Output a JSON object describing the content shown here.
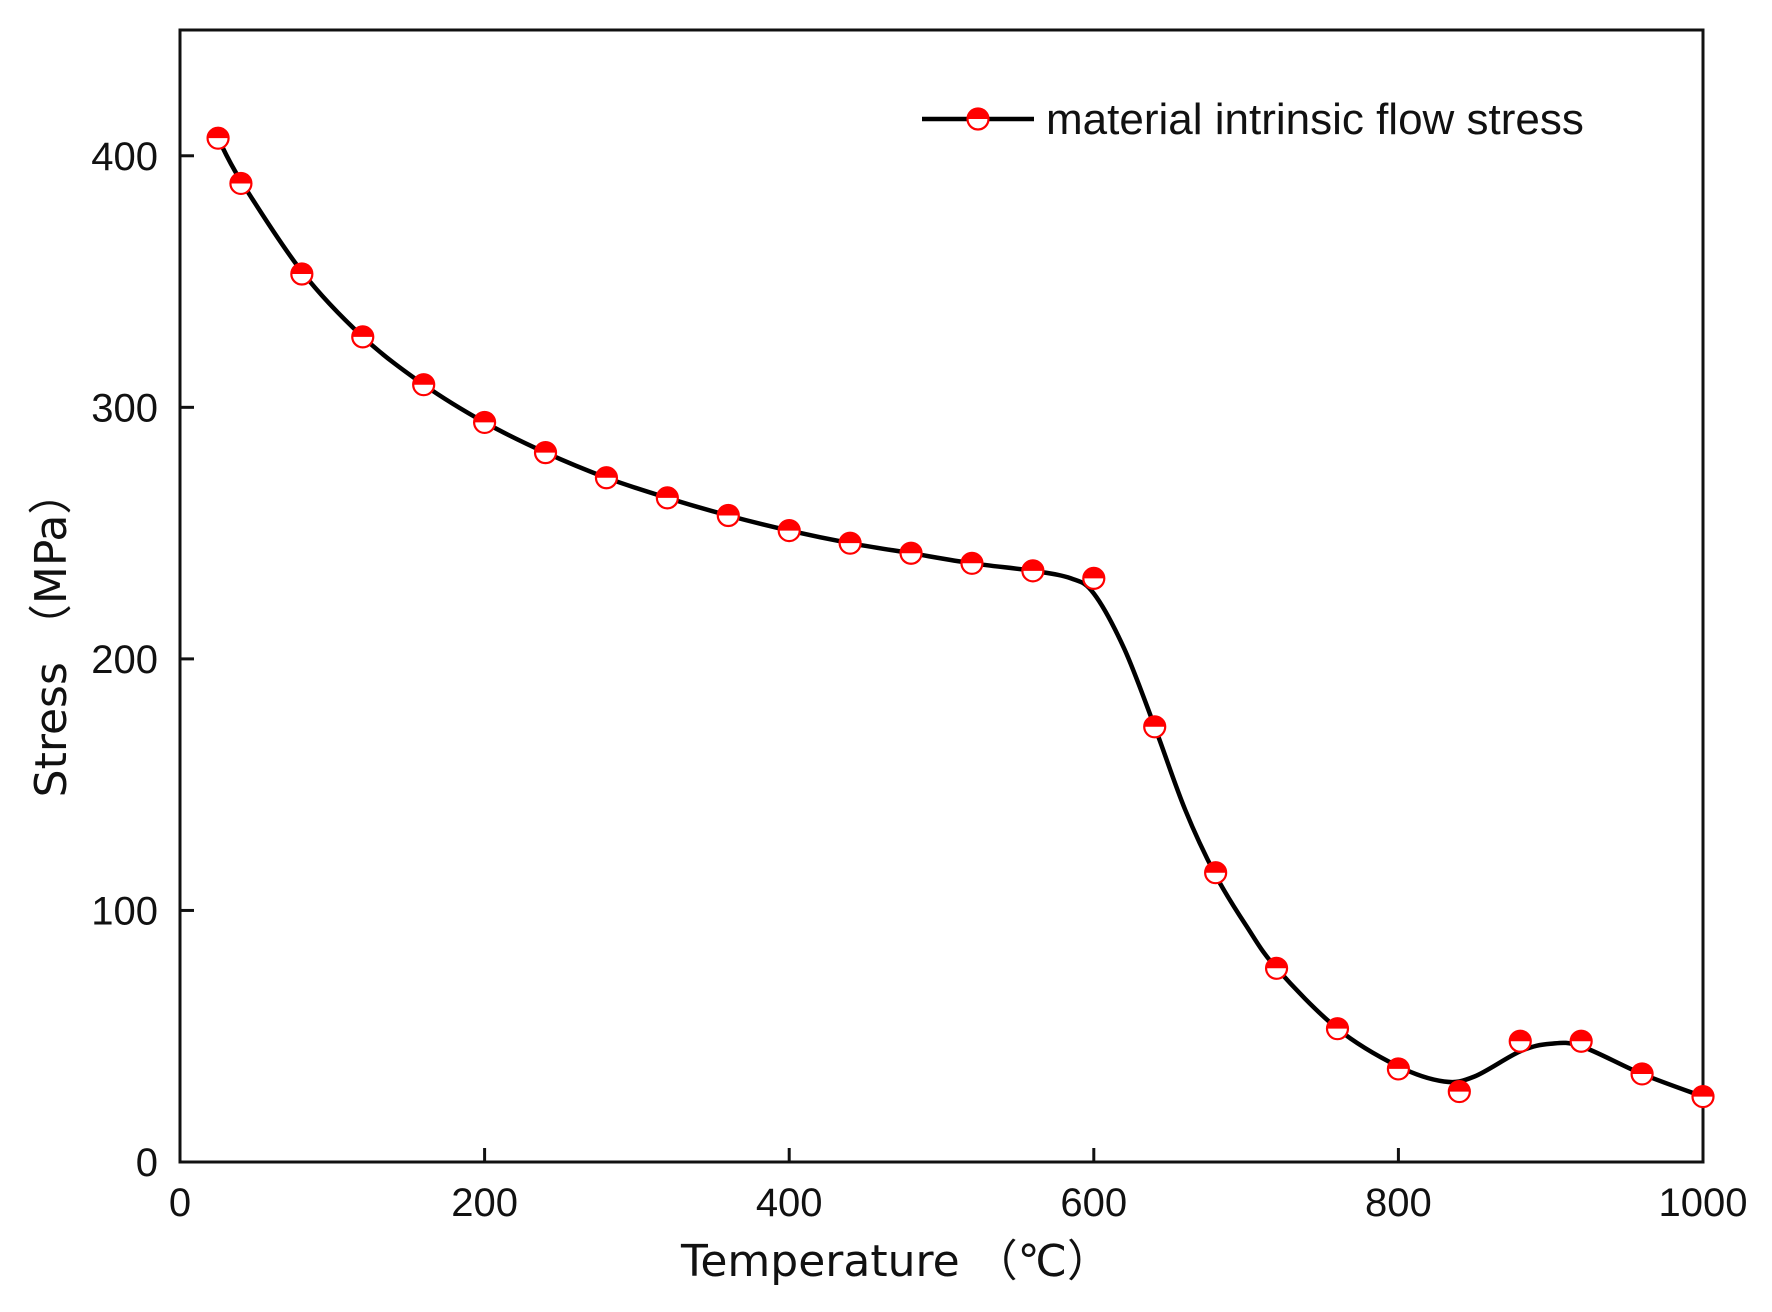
{
  "chart_data": {
    "type": "line",
    "title": "",
    "xlabel": "Temperature （℃）",
    "ylabel": "Stress （MPa）",
    "xlim": [
      0,
      1000
    ],
    "ylim": [
      0,
      450
    ],
    "xticks": [
      0,
      200,
      400,
      600,
      800,
      1000
    ],
    "yticks": [
      0,
      100,
      200,
      300,
      400
    ],
    "grid": false,
    "legend_position": "top-right",
    "series": [
      {
        "name": "material intrinsic flow stress",
        "line_color": "#000000",
        "marker_color": "#ff0000",
        "x": [
          25,
          40,
          80,
          120,
          160,
          200,
          240,
          280,
          320,
          360,
          400,
          440,
          480,
          520,
          560,
          600,
          640,
          680,
          720,
          760,
          800,
          840,
          880,
          920,
          960,
          1000
        ],
        "y": [
          407,
          389,
          353,
          328,
          309,
          294,
          282,
          272,
          264,
          257,
          251,
          246,
          242,
          238,
          235,
          232,
          173,
          115,
          77,
          53,
          37,
          28,
          48,
          48,
          35,
          26
        ]
      }
    ],
    "curve": [
      [
        25,
        407
      ],
      [
        40,
        390
      ],
      [
        80,
        354
      ],
      [
        120,
        328
      ],
      [
        160,
        309
      ],
      [
        200,
        294
      ],
      [
        240,
        282
      ],
      [
        280,
        272
      ],
      [
        320,
        264
      ],
      [
        360,
        257
      ],
      [
        400,
        251
      ],
      [
        440,
        246
      ],
      [
        480,
        242
      ],
      [
        520,
        238
      ],
      [
        560,
        235
      ],
      [
        585,
        232
      ],
      [
        600,
        226
      ],
      [
        620,
        204
      ],
      [
        640,
        173
      ],
      [
        660,
        140
      ],
      [
        680,
        114
      ],
      [
        700,
        94
      ],
      [
        720,
        77
      ],
      [
        760,
        53
      ],
      [
        800,
        38
      ],
      [
        830,
        32
      ],
      [
        850,
        34
      ],
      [
        880,
        44
      ],
      [
        900,
        47
      ],
      [
        920,
        46
      ],
      [
        960,
        35
      ],
      [
        1000,
        26
      ]
    ]
  }
}
